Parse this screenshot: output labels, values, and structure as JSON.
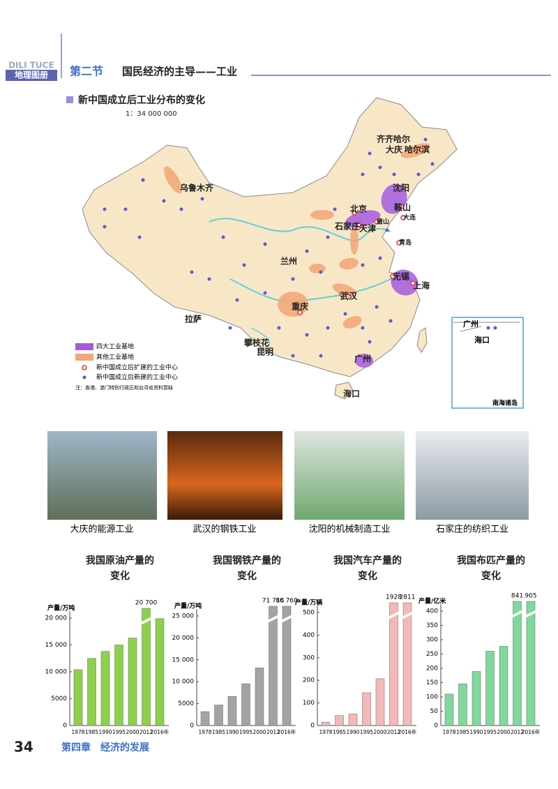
{
  "header": {
    "pinyin": "DILI TUCE",
    "book": "地理图册",
    "section": "第二节",
    "title": "国民经济的主导——工业"
  },
  "map": {
    "title": "新中国成立后工业分布的变化",
    "scale": "1：34 000 000",
    "cities": [
      "乌鲁木齐",
      "齐齐哈尔",
      "大庆",
      "哈尔滨",
      "沈阳",
      "鞍山",
      "北京",
      "唐山",
      "大连",
      "石家庄",
      "天津",
      "青岛",
      "兰州",
      "无锡",
      "上海",
      "武汉",
      "重庆",
      "拉萨",
      "攀枝花",
      "昆明",
      "广州",
      "海口"
    ],
    "inset": {
      "cities": [
        "广州",
        "海口"
      ],
      "label": "南海诸岛"
    },
    "legend": [
      "四大工业基地",
      "其他工业基地",
      "新中国成立后扩建的工业中心",
      "新中国成立后新建的工业中心"
    ],
    "note": "注：香港、澳门特别行政区和台湾省资料暂缺"
  },
  "photos": [
    {
      "caption": "大庆的能源工业"
    },
    {
      "caption": "武汉的钢铁工业"
    },
    {
      "caption": "沈阳的机械制造工业"
    },
    {
      "caption": "石家庄的纺织工业"
    }
  ],
  "chart_data": [
    {
      "type": "bar",
      "title": "我国原油产量的变化",
      "y_label": "产量/万吨",
      "categories": [
        "1978",
        "1985",
        "1990",
        "1995",
        "2000",
        "2012",
        "2016年"
      ],
      "values": [
        10400,
        12500,
        13800,
        15000,
        16300,
        20700,
        19900
      ],
      "value_labels": [
        null,
        null,
        null,
        null,
        null,
        "20 700",
        null
      ],
      "color": "#8cd14a",
      "axis_break": true,
      "ylim": [
        0,
        20000
      ],
      "yticks": [
        0,
        5000,
        {
          "value": 10000,
          "label": "10 000"
        },
        {
          "value": 15000,
          "label": "15 000"
        },
        {
          "value": 20000,
          "label": "20 000"
        }
      ]
    },
    {
      "type": "bar",
      "title": "我国钢铁产量的变化",
      "y_label": "产量/万吨",
      "categories": [
        "1978",
        "1985",
        "1990",
        "1995",
        "2000",
        "2012",
        "2016年"
      ],
      "values": [
        3178,
        4679,
        6635,
        9536,
        13146,
        71716,
        80760
      ],
      "value_labels": [
        null,
        null,
        null,
        null,
        null,
        "71 716",
        "80 760"
      ],
      "color": "#a3a3a3",
      "axis_break": true,
      "ylim": [
        0,
        25000
      ],
      "yticks": [
        0,
        5000,
        {
          "value": 10000,
          "label": "10 000"
        },
        {
          "value": 15000,
          "label": "15 000"
        },
        {
          "value": 20000,
          "label": "20 000"
        },
        {
          "value": 25000,
          "label": "25 000"
        }
      ]
    },
    {
      "type": "bar",
      "title": "我国汽车产量的变化",
      "y_label": "产量/万辆",
      "categories": [
        "1978",
        "1985",
        "1990",
        "1995",
        "2000",
        "2012",
        "2016年"
      ],
      "values": [
        15,
        44,
        51,
        145,
        207,
        1928,
        2811
      ],
      "color": "#f4b8b8",
      "axis_break": true,
      "ylim": [
        0,
        500
      ],
      "yticks": [
        0,
        100,
        200,
        300,
        400,
        500
      ]
    },
    {
      "type": "bar",
      "title": "我国布匹产量的变化",
      "y_label": "产量/亿米",
      "categories": [
        "1978",
        "1985",
        "1990",
        "1995",
        "2000",
        "2012",
        "2016年"
      ],
      "values": [
        110,
        146,
        189,
        260,
        277,
        841,
        905
      ],
      "color": "#7fd99a",
      "axis_break": true,
      "ylim": [
        0,
        400
      ],
      "yticks": [
        0,
        50,
        100,
        150,
        200,
        250,
        300,
        350,
        400
      ]
    }
  ],
  "footer": {
    "page": "34",
    "chapter": "第四章　经济的发展"
  }
}
